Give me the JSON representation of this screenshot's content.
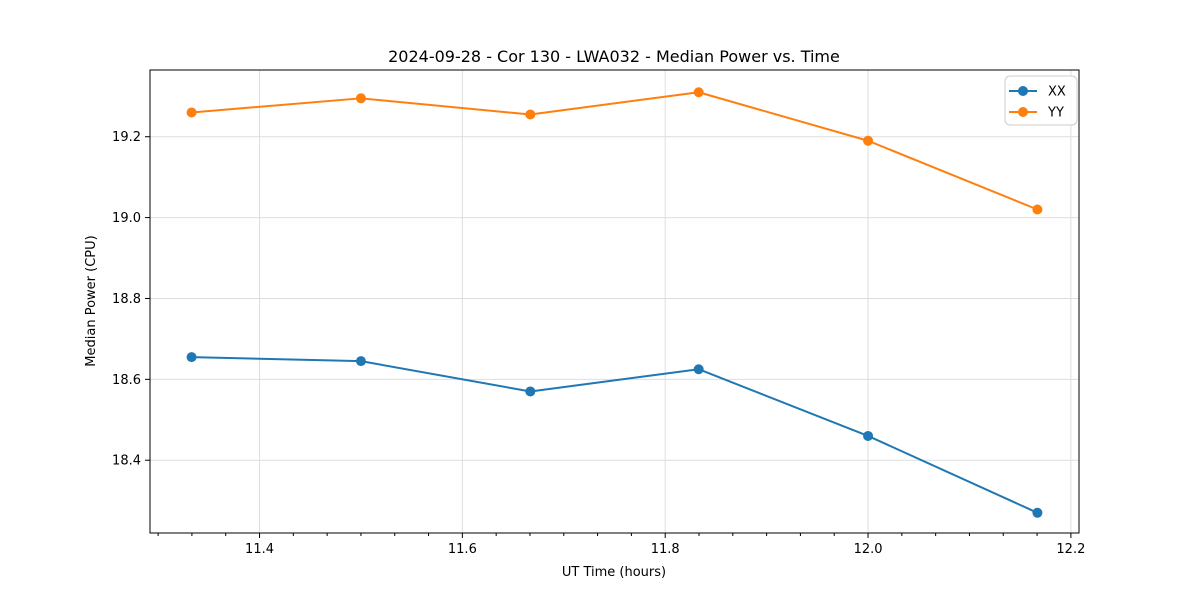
{
  "chart_data": {
    "type": "line",
    "title": "2024-09-28 - Cor 130 - LWA032 - Median Power vs. Time",
    "xlabel": "UT Time (hours)",
    "ylabel": "Median Power (CPU)",
    "x": [
      11.333,
      11.5,
      11.667,
      11.833,
      12.0,
      12.167
    ],
    "series": [
      {
        "name": "XX",
        "color": "#1f77b4",
        "values": [
          18.655,
          18.645,
          18.57,
          18.625,
          18.46,
          18.27
        ]
      },
      {
        "name": "YY",
        "color": "#ff7f0e",
        "values": [
          19.26,
          19.295,
          19.255,
          19.31,
          19.19,
          19.02
        ]
      }
    ],
    "xlim": [
      11.292,
      12.208
    ],
    "ylim": [
      18.22,
      19.365
    ],
    "xticks": [
      11.4,
      11.6,
      11.8,
      12.0,
      12.2
    ],
    "yticks": [
      18.4,
      18.6,
      18.8,
      19.0,
      19.2
    ],
    "tick_decimals": 1,
    "x_minor_step": 0.0333333,
    "grid": true,
    "grid_color": "#dedede",
    "axis_color": "#000000",
    "legend_position": "upper right",
    "legend_border_color": "#cccccc",
    "marker": "circle",
    "marker_radius": 5,
    "line_width": 2
  }
}
